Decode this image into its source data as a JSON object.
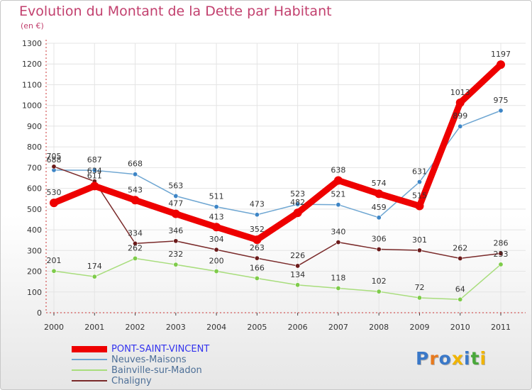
{
  "title": "Evolution du Montant de la Dette par Habitant",
  "subtitle": "(en €)",
  "logo": {
    "text": "Proxiti",
    "colors": [
      "#3a78c8",
      "#e87a1e",
      "#3a78c8",
      "#f0b400",
      "#3a78c8",
      "#49a83a",
      "#f0b400"
    ]
  },
  "chart_data": {
    "type": "line",
    "x": [
      "2000",
      "2001",
      "2002",
      "2003",
      "2004",
      "2005",
      "2006",
      "2007",
      "2008",
      "2009",
      "2010",
      "2011"
    ],
    "ylim": [
      0,
      1300
    ],
    "yticks": [
      "0",
      "100",
      "200",
      "300",
      "400",
      "500",
      "600",
      "700",
      "800",
      "900",
      "1000",
      "1100",
      "1200",
      "1300"
    ],
    "grid": true,
    "legend_position": "bottom-left",
    "series": [
      {
        "name": "PONT-SAINT-VINCENT",
        "color": "#ee0000",
        "marker": "#ee0000",
        "values": [
          530,
          611,
          543,
          477,
          413,
          352,
          482,
          638,
          574,
          515,
          1013,
          1197
        ],
        "labels": [
          "530",
          "611",
          "543",
          "477",
          "413",
          "352",
          "482",
          "638",
          "574",
          "515",
          "1013",
          "1197"
        ]
      },
      {
        "name": "Neuves-Maisons",
        "color": "#6ea6d2",
        "marker": "#3d85c6",
        "values": [
          688,
          687,
          668,
          563,
          511,
          473,
          523,
          521,
          459,
          631,
          899,
          975
        ],
        "labels": [
          "688",
          "687",
          "668",
          "563",
          "511",
          "473",
          "523",
          "521",
          "459",
          "631",
          "899",
          "975"
        ]
      },
      {
        "name": "Bainville-sur-Madon",
        "color": "#a8dd7c",
        "marker": "#7ecb4a",
        "values": [
          201,
          174,
          262,
          232,
          200,
          166,
          134,
          118,
          102,
          72,
          64,
          233
        ],
        "labels": [
          "201",
          "174",
          "262",
          "232",
          "200",
          "166",
          "134",
          "118",
          "102",
          "72",
          "64",
          "233"
        ]
      },
      {
        "name": "Chaligny",
        "color": "#7a2a2a",
        "marker": "#6b1a1a",
        "values": [
          705,
          634,
          334,
          346,
          304,
          263,
          226,
          340,
          306,
          301,
          262,
          286
        ],
        "labels": [
          "705",
          "634",
          "334",
          "346",
          "304",
          "263",
          "226",
          "340",
          "306",
          "301",
          "262",
          "286"
        ]
      }
    ]
  }
}
